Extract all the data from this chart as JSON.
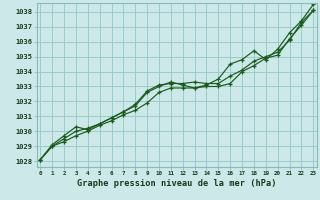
{
  "title": "Graphe pression niveau de la mer (hPa)",
  "bg_color": "#cce8e8",
  "grid_color": "#99cccc",
  "line_color": "#1a5c1a",
  "ylabel_values": [
    1028,
    1029,
    1030,
    1031,
    1032,
    1033,
    1034,
    1035,
    1036,
    1037,
    1038
  ],
  "xlim": [
    -0.3,
    23.3
  ],
  "ylim": [
    1027.6,
    1038.6
  ],
  "series1": [
    1028.1,
    1029.0,
    1029.3,
    1029.7,
    1030.0,
    1030.4,
    1030.7,
    1031.1,
    1031.4,
    1031.9,
    1032.6,
    1032.9,
    1032.9,
    1032.9,
    1033.0,
    1033.0,
    1033.2,
    1034.0,
    1034.4,
    1034.9,
    1035.1,
    1036.2,
    1037.1,
    1038.1
  ],
  "series2": [
    1028.1,
    1029.1,
    1029.7,
    1030.3,
    1030.1,
    1030.5,
    1030.9,
    1031.3,
    1031.7,
    1032.6,
    1033.0,
    1033.3,
    1033.1,
    1032.9,
    1033.1,
    1033.5,
    1034.5,
    1034.8,
    1035.4,
    1034.8,
    1035.5,
    1036.6,
    1037.4,
    1038.5
  ],
  "series3": [
    1028.1,
    1029.0,
    1029.5,
    1030.0,
    1030.2,
    1030.5,
    1030.9,
    1031.3,
    1031.8,
    1032.7,
    1033.1,
    1033.2,
    1033.2,
    1033.3,
    1033.2,
    1033.2,
    1033.7,
    1034.1,
    1034.7,
    1035.0,
    1035.3,
    1036.1,
    1037.3,
    1038.1
  ]
}
